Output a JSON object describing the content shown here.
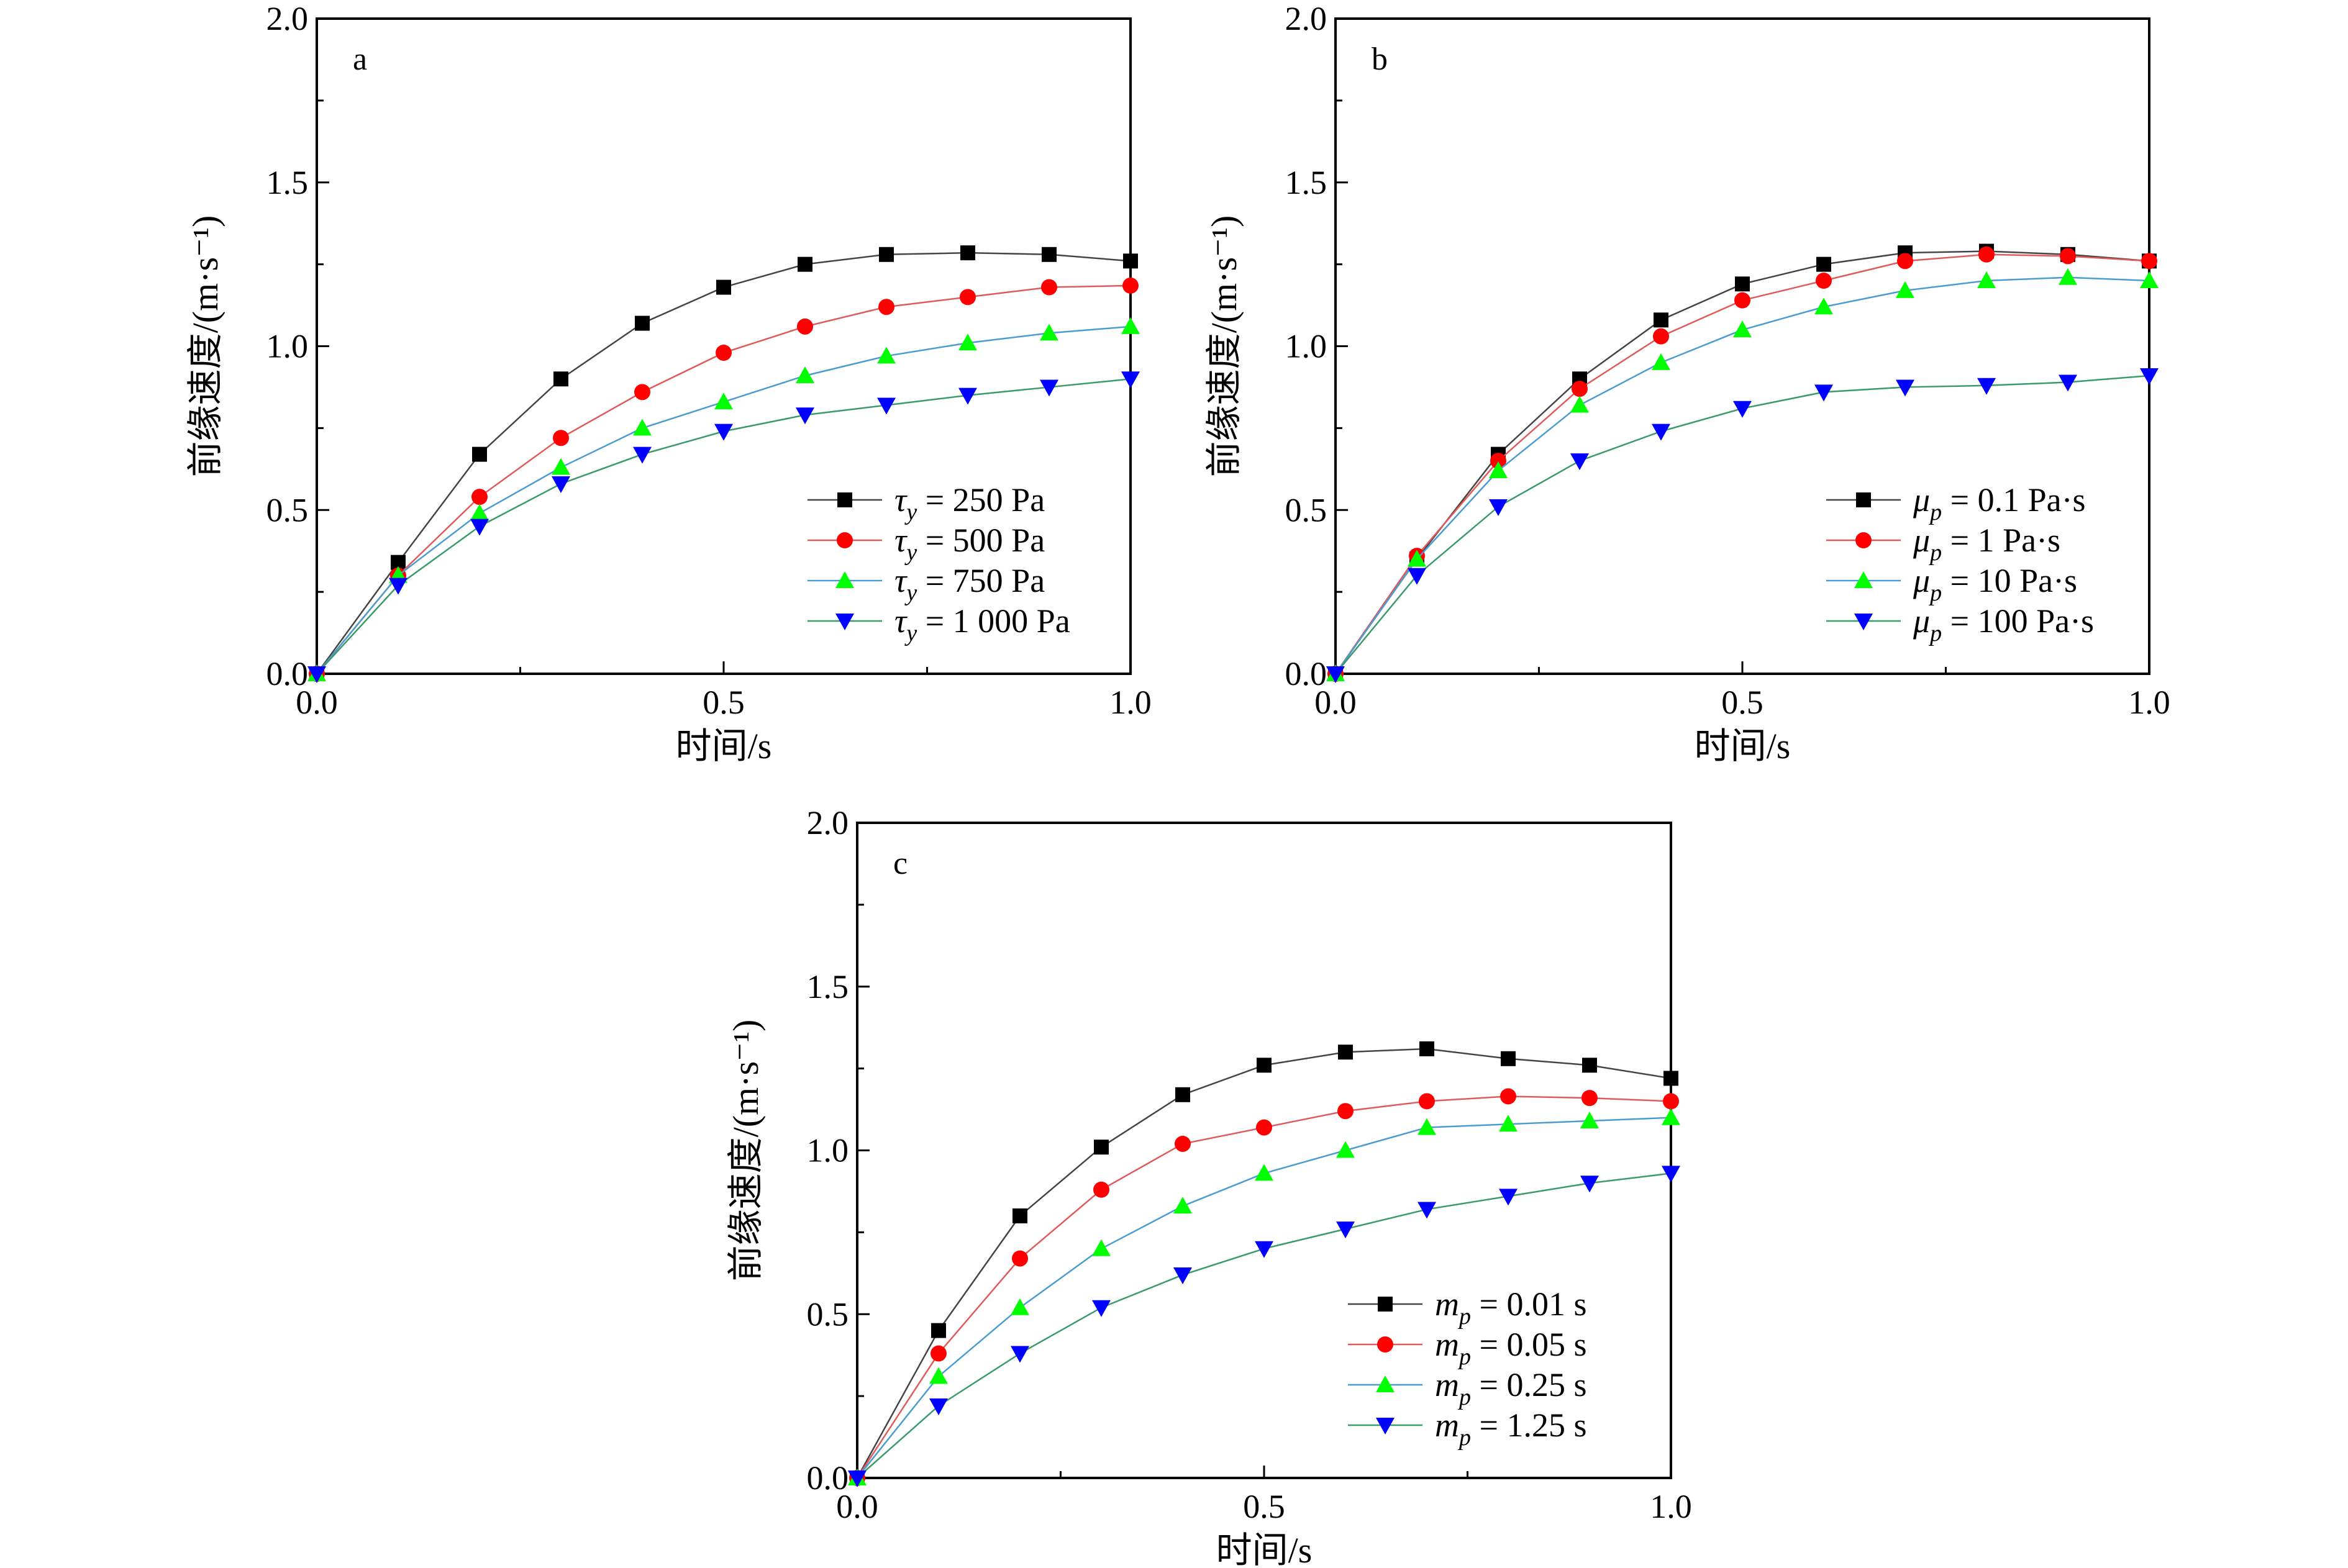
{
  "chart_data": [
    {
      "type": "line",
      "panel_label": "a",
      "xlabel": "时间/s",
      "ylabel": "前缘速度/(m·s⁻¹)",
      "xlim": [
        0,
        1
      ],
      "ylim": [
        0,
        2
      ],
      "xticks": [
        "0.0",
        "0.5",
        "1.0"
      ],
      "yticks": [
        "0.0",
        "0.5",
        "1.0",
        "1.5",
        "2.0"
      ],
      "grid": false,
      "legend_position": "bottom-right",
      "x": [
        0,
        0.1,
        0.2,
        0.3,
        0.4,
        0.5,
        0.6,
        0.7,
        0.8,
        0.9,
        1.0
      ],
      "series": [
        {
          "name": "τy = 250 Pa",
          "sym": "τ",
          "sub": "y",
          "rest": " = 250 Pa",
          "marker": "square",
          "color": "#000000",
          "values": [
            0,
            0.34,
            0.67,
            0.9,
            1.07,
            1.18,
            1.25,
            1.28,
            1.285,
            1.28,
            1.26
          ]
        },
        {
          "name": "τy = 500 Pa",
          "sym": "τ",
          "sub": "y",
          "rest": " = 500 Pa",
          "marker": "circle",
          "color": "#ff0000",
          "values": [
            0,
            0.3,
            0.54,
            0.72,
            0.86,
            0.98,
            1.06,
            1.12,
            1.15,
            1.18,
            1.185
          ]
        },
        {
          "name": "τy = 750 Pa",
          "sym": "τ",
          "sub": "y",
          "rest": " = 750 Pa",
          "marker": "triangle-up",
          "color": "#00ff00",
          "values": [
            0,
            0.3,
            0.49,
            0.63,
            0.75,
            0.83,
            0.91,
            0.97,
            1.01,
            1.04,
            1.06
          ]
        },
        {
          "name": "τy = 1 000 Pa",
          "sym": "τ",
          "sub": "y",
          "rest": " = 1 000 Pa",
          "marker": "triangle-down",
          "color": "#0000ff",
          "values": [
            0,
            0.27,
            0.45,
            0.58,
            0.67,
            0.74,
            0.79,
            0.82,
            0.85,
            0.875,
            0.9
          ]
        }
      ]
    },
    {
      "type": "line",
      "panel_label": "b",
      "xlabel": "时间/s",
      "ylabel": "前缘速度/(m·s⁻¹)",
      "xlim": [
        0,
        1
      ],
      "ylim": [
        0,
        2
      ],
      "xticks": [
        "0.0",
        "0.5",
        "1.0"
      ],
      "yticks": [
        "0.0",
        "0.5",
        "1.0",
        "1.5",
        "2.0"
      ],
      "grid": false,
      "legend_position": "bottom-right",
      "x": [
        0,
        0.1,
        0.2,
        0.3,
        0.4,
        0.5,
        0.6,
        0.7,
        0.8,
        0.9,
        1.0
      ],
      "series": [
        {
          "name": "μp = 0.1 Pa·s",
          "sym": "μ",
          "sub": "p",
          "rest": " = 0.1 Pa·s",
          "marker": "square",
          "color": "#000000",
          "values": [
            0,
            0.35,
            0.67,
            0.9,
            1.08,
            1.19,
            1.25,
            1.285,
            1.29,
            1.28,
            1.26
          ]
        },
        {
          "name": "μp = 1 Pa·s",
          "sym": "μ",
          "sub": "p",
          "rest": " = 1 Pa·s",
          "marker": "circle",
          "color": "#ff0000",
          "values": [
            0,
            0.36,
            0.65,
            0.87,
            1.03,
            1.14,
            1.2,
            1.26,
            1.28,
            1.275,
            1.26
          ]
        },
        {
          "name": "μp = 10 Pa·s",
          "sym": "μ",
          "sub": "p",
          "rest": " = 10 Pa·s",
          "marker": "triangle-up",
          "color": "#00ff00",
          "values": [
            0,
            0.35,
            0.62,
            0.82,
            0.95,
            1.05,
            1.12,
            1.17,
            1.2,
            1.21,
            1.2
          ]
        },
        {
          "name": "μp = 100 Pa·s",
          "sym": "μ",
          "sub": "p",
          "rest": " = 100 Pa·s",
          "marker": "triangle-down",
          "color": "#0000ff",
          "values": [
            0,
            0.3,
            0.51,
            0.65,
            0.74,
            0.81,
            0.86,
            0.875,
            0.88,
            0.89,
            0.91
          ]
        }
      ]
    },
    {
      "type": "line",
      "panel_label": "c",
      "xlabel": "时间/s",
      "ylabel": "前缘速度/(m·s⁻¹)",
      "xlim": [
        0,
        1
      ],
      "ylim": [
        0,
        2
      ],
      "xticks": [
        "0.0",
        "0.5",
        "1.0"
      ],
      "yticks": [
        "0.0",
        "0.5",
        "1.0",
        "1.5",
        "2.0"
      ],
      "grid": false,
      "legend_position": "bottom-right",
      "x": [
        0,
        0.1,
        0.2,
        0.3,
        0.4,
        0.5,
        0.6,
        0.7,
        0.8,
        0.9,
        1.0
      ],
      "series": [
        {
          "name": "mp = 0.01 s",
          "sym": "m",
          "sub": "p",
          "rest": " = 0.01 s",
          "marker": "square",
          "color": "#000000",
          "values": [
            0,
            0.45,
            0.8,
            1.01,
            1.17,
            1.26,
            1.3,
            1.31,
            1.28,
            1.26,
            1.22
          ]
        },
        {
          "name": "mp = 0.05 s",
          "sym": "m",
          "sub": "p",
          "rest": " = 0.05 s",
          "marker": "circle",
          "color": "#ff0000",
          "values": [
            0,
            0.38,
            0.67,
            0.88,
            1.02,
            1.07,
            1.12,
            1.15,
            1.165,
            1.16,
            1.15
          ]
        },
        {
          "name": "mp = 0.25 s",
          "sym": "m",
          "sub": "p",
          "rest": " = 0.25 s",
          "marker": "triangle-up",
          "color": "#00ff00",
          "values": [
            0,
            0.31,
            0.52,
            0.7,
            0.83,
            0.93,
            1.0,
            1.07,
            1.08,
            1.09,
            1.1
          ]
        },
        {
          "name": "mp = 1.25 s",
          "sym": "m",
          "sub": "p",
          "rest": " = 1.25 s",
          "marker": "triangle-down",
          "color": "#0000ff",
          "values": [
            0,
            0.22,
            0.38,
            0.52,
            0.62,
            0.7,
            0.76,
            0.82,
            0.86,
            0.9,
            0.93
          ]
        }
      ]
    }
  ]
}
